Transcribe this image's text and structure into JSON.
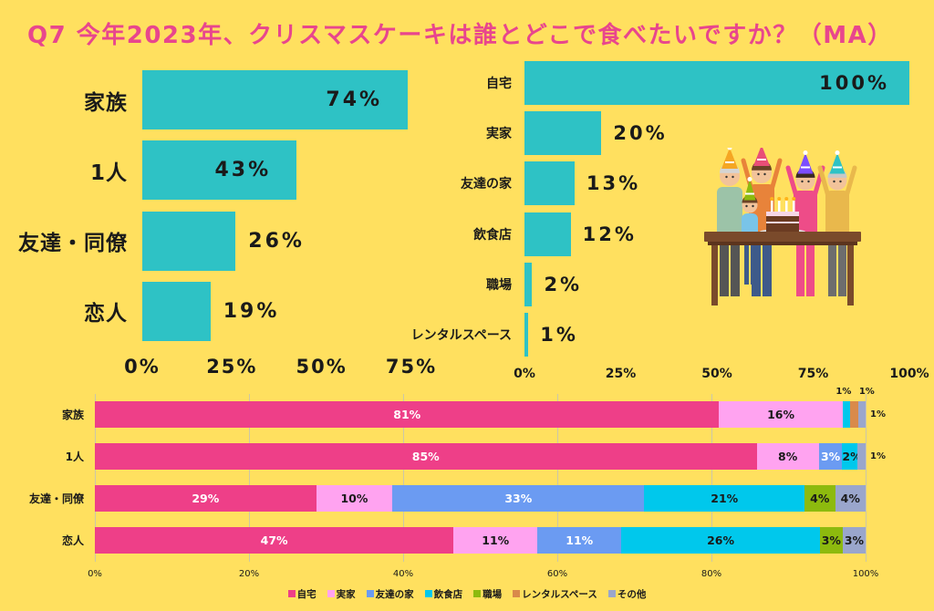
{
  "title": "Q7 今年2023年、クリスマスケーキは誰とどこで食べたいですか？（MA）",
  "colors": {
    "background": "#FFE05F",
    "title": "#E8468D",
    "text": "#1A1A1A",
    "teal_bar": "#2EC2C5",
    "gridline": "#CCC6A8"
  },
  "illustration": "family-christmas-party-icon",
  "chart_data": [
    {
      "type": "bar",
      "orientation": "horizontal",
      "categories": [
        "家族",
        "1人",
        "友達・同僚",
        "恋人"
      ],
      "values": [
        74,
        43,
        26,
        19
      ],
      "value_labels": [
        "74%",
        "43%",
        "26%",
        "19%"
      ],
      "xticks": [
        "0%",
        "25%",
        "50%",
        "75%"
      ],
      "xlim": [
        0,
        75
      ],
      "grid": false,
      "color": "#2EC2C5"
    },
    {
      "type": "bar",
      "orientation": "horizontal",
      "categories": [
        "自宅",
        "実家",
        "友達の家",
        "飲食店",
        "職場",
        "レンタルスペース"
      ],
      "values": [
        100,
        20,
        13,
        12,
        2,
        1
      ],
      "value_labels": [
        "100%",
        "20%",
        "13%",
        "12%",
        "2%",
        "1%"
      ],
      "xticks": [
        "0%",
        "25%",
        "50%",
        "75%",
        "100%"
      ],
      "xlim": [
        0,
        100
      ],
      "grid": false,
      "color": "#2EC2C5"
    },
    {
      "type": "bar",
      "orientation": "horizontal",
      "stacked": true,
      "normalized": true,
      "categories": [
        "家族",
        "1人",
        "友達・同僚",
        "恋人"
      ],
      "series": [
        {
          "name": "自宅",
          "color": "#EE3F88",
          "label_color": "#FFFFFF",
          "values": [
            81,
            85,
            29,
            47
          ],
          "labels": [
            "81%",
            "85%",
            "29%",
            "47%"
          ]
        },
        {
          "name": "実家",
          "color": "#FFA3F0",
          "label_color": "#1A1A1A",
          "values": [
            16,
            8,
            10,
            11
          ],
          "labels": [
            "16%",
            "8%",
            "10%",
            "11%"
          ]
        },
        {
          "name": "友達の家",
          "color": "#6B9BF2",
          "label_color": "#FFFFFF",
          "values": [
            0,
            3,
            33,
            11
          ],
          "labels": [
            null,
            "3%",
            "33%",
            "11%"
          ]
        },
        {
          "name": "飲食店",
          "color": "#00C8EC",
          "label_color": "#1A1A1A",
          "values": [
            1,
            2,
            21,
            26
          ],
          "labels": [
            "1%",
            "2%",
            "21%",
            "26%"
          ]
        },
        {
          "name": "職場",
          "color": "#8DBA0E",
          "label_color": "#1A1A1A",
          "values": [
            0,
            0,
            4,
            3
          ],
          "labels": [
            null,
            null,
            "4%",
            "3%"
          ]
        },
        {
          "name": "レンタルスペース",
          "color": "#D98A4A",
          "label_color": "#1A1A1A",
          "values": [
            1,
            0,
            0,
            0
          ],
          "labels": [
            "1%",
            null,
            null,
            null
          ]
        },
        {
          "name": "その他",
          "color": "#9AA6CC",
          "label_color": "#1A1A1A",
          "values": [
            1,
            1,
            4,
            3
          ],
          "labels": [
            "1%",
            "1%",
            "4%",
            "3%"
          ]
        }
      ],
      "xticks": [
        "0%",
        "20%",
        "40%",
        "60%",
        "80%",
        "100%"
      ],
      "xlim": [
        0,
        100
      ],
      "grid": true,
      "legend": "bottom"
    }
  ]
}
